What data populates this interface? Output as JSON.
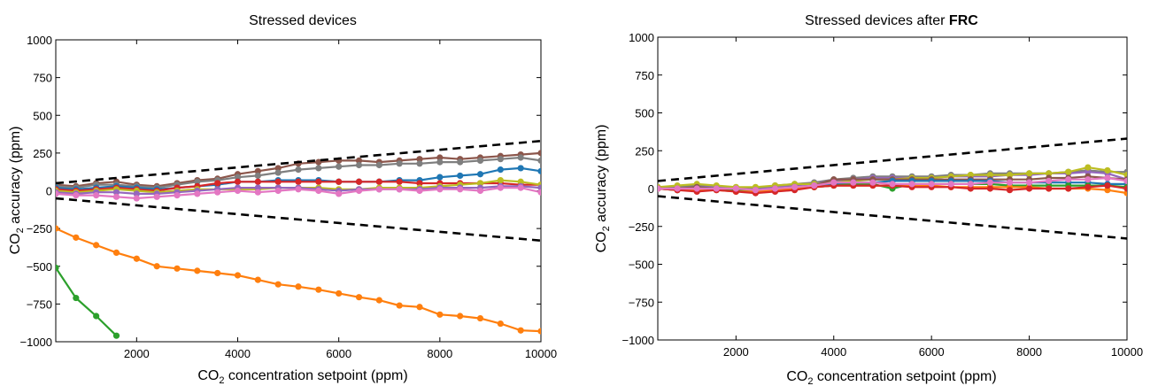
{
  "chart_data": [
    {
      "type": "line",
      "title": "Stressed devices",
      "title_bold": "",
      "xlabel": {
        "pre": "CO",
        "sub": "2",
        "post": " concentration setpoint (ppm)"
      },
      "ylabel": {
        "pre": "CO",
        "sub": "2",
        "post": " accuracy (ppm)"
      },
      "xlim": [
        400,
        10000
      ],
      "ylim": [
        -1000,
        1000
      ],
      "xticks": [
        2000,
        4000,
        6000,
        8000,
        10000
      ],
      "xtick_labels": [
        "2000",
        "4000",
        "6000",
        "8000",
        "10000"
      ],
      "yticks": [
        1000,
        750,
        500,
        250,
        0,
        -250,
        -500,
        -750,
        -1000
      ],
      "ytick_labels": [
        "1000",
        "750",
        "500",
        "250",
        "0",
        "−250",
        "−500",
        "−750",
        "−1000"
      ],
      "tolerance_lines": [
        {
          "x": [
            400,
            10000
          ],
          "y": [
            50,
            330
          ]
        },
        {
          "x": [
            400,
            10000
          ],
          "y": [
            -50,
            -330
          ]
        }
      ],
      "x": [
        400,
        800,
        1200,
        1600,
        2000,
        2400,
        2800,
        3200,
        3600,
        4000,
        4400,
        4800,
        5200,
        5600,
        6000,
        6400,
        6800,
        7200,
        7600,
        8000,
        8400,
        8800,
        9200,
        9600,
        10000
      ],
      "series": [
        {
          "color": "#ff7f0e",
          "values": [
            -250,
            -310,
            -360,
            -410,
            -450,
            -500,
            -515,
            -530,
            -545,
            -560,
            -590,
            -620,
            -635,
            -655,
            -680,
            -705,
            -725,
            -760,
            -770,
            -820,
            -830,
            -845,
            -880,
            -925,
            -930
          ]
        },
        {
          "color": "#2ca02c",
          "x": [
            400,
            800,
            1200,
            1600
          ],
          "values": [
            -510,
            -710,
            -830,
            -960
          ]
        },
        {
          "color": "#8c564b",
          "values": [
            40,
            30,
            50,
            60,
            40,
            30,
            50,
            70,
            80,
            110,
            130,
            150,
            180,
            190,
            200,
            200,
            190,
            200,
            210,
            220,
            210,
            220,
            230,
            240,
            250
          ]
        },
        {
          "color": "#7f7f7f",
          "values": [
            30,
            20,
            40,
            40,
            30,
            20,
            40,
            60,
            70,
            90,
            100,
            120,
            140,
            150,
            160,
            170,
            170,
            180,
            180,
            190,
            190,
            200,
            210,
            220,
            200
          ]
        },
        {
          "color": "#1f77b4",
          "values": [
            20,
            10,
            20,
            30,
            20,
            10,
            20,
            30,
            40,
            60,
            60,
            70,
            70,
            70,
            60,
            60,
            60,
            70,
            70,
            90,
            100,
            110,
            140,
            150,
            130
          ]
        },
        {
          "color": "#d62728",
          "values": [
            10,
            0,
            10,
            20,
            10,
            0,
            20,
            30,
            50,
            60,
            60,
            60,
            60,
            60,
            60,
            60,
            60,
            60,
            50,
            50,
            50,
            50,
            50,
            40,
            40
          ]
        },
        {
          "color": "#bcbd22",
          "values": [
            0,
            -10,
            0,
            10,
            0,
            -10,
            0,
            10,
            10,
            10,
            10,
            20,
            20,
            20,
            10,
            10,
            20,
            20,
            20,
            30,
            40,
            50,
            70,
            60,
            40
          ]
        },
        {
          "color": "#9467bd",
          "values": [
            -10,
            -20,
            -10,
            -10,
            -20,
            -20,
            -10,
            0,
            10,
            20,
            20,
            20,
            20,
            10,
            0,
            10,
            10,
            10,
            10,
            20,
            20,
            20,
            30,
            30,
            20
          ]
        },
        {
          "color": "#e377c2",
          "values": [
            -20,
            -30,
            -30,
            -40,
            -50,
            -40,
            -30,
            -20,
            -10,
            0,
            -10,
            0,
            10,
            0,
            -20,
            0,
            10,
            10,
            0,
            10,
            10,
            0,
            20,
            20,
            -10
          ]
        }
      ]
    },
    {
      "type": "line",
      "title": "Stressed devices after ",
      "title_bold": "FRC",
      "xlabel": {
        "pre": "CO",
        "sub": "2",
        "post": " concentration setpoint (ppm)"
      },
      "ylabel": {
        "pre": "CO",
        "sub": "2",
        "post": " accuracy (ppm)"
      },
      "xlim": [
        400,
        10000
      ],
      "ylim": [
        -1000,
        1000
      ],
      "xticks": [
        2000,
        4000,
        6000,
        8000,
        10000
      ],
      "xtick_labels": [
        "2000",
        "4000",
        "6000",
        "8000",
        "10000"
      ],
      "yticks": [
        1000,
        750,
        500,
        250,
        0,
        -250,
        -500,
        -750,
        -1000
      ],
      "ytick_labels": [
        "1000",
        "750",
        "500",
        "250",
        "0",
        "−250",
        "−500",
        "−750",
        "−1000"
      ],
      "tolerance_lines": [
        {
          "x": [
            400,
            10000
          ],
          "y": [
            50,
            330
          ]
        },
        {
          "x": [
            400,
            10000
          ],
          "y": [
            -50,
            -330
          ]
        }
      ],
      "x": [
        400,
        800,
        1200,
        1600,
        2000,
        2400,
        2800,
        3200,
        3600,
        4000,
        4400,
        4800,
        5200,
        5600,
        6000,
        6400,
        6800,
        7200,
        7600,
        8000,
        8400,
        8800,
        9200,
        9600,
        10000
      ],
      "series": [
        {
          "color": "#7f7f7f",
          "values": [
            0,
            10,
            20,
            10,
            0,
            0,
            20,
            30,
            40,
            60,
            70,
            80,
            80,
            80,
            80,
            90,
            90,
            100,
            100,
            100,
            100,
            110,
            120,
            110,
            110
          ]
        },
        {
          "color": "#9467bd",
          "values": [
            0,
            0,
            10,
            10,
            0,
            -10,
            10,
            20,
            30,
            50,
            60,
            70,
            70,
            70,
            70,
            80,
            80,
            80,
            90,
            90,
            100,
            100,
            110,
            100,
            60
          ]
        },
        {
          "color": "#bcbd22",
          "values": [
            10,
            20,
            30,
            20,
            10,
            10,
            20,
            30,
            30,
            40,
            50,
            60,
            60,
            70,
            70,
            80,
            90,
            90,
            90,
            100,
            100,
            110,
            140,
            120,
            90
          ]
        },
        {
          "color": "#8c564b",
          "values": [
            0,
            0,
            10,
            0,
            -10,
            -20,
            0,
            10,
            20,
            60,
            60,
            60,
            60,
            60,
            60,
            60,
            60,
            60,
            60,
            60,
            70,
            70,
            80,
            70,
            60
          ]
        },
        {
          "color": "#1f77b4",
          "values": [
            0,
            -10,
            0,
            0,
            -10,
            -10,
            0,
            10,
            20,
            30,
            40,
            40,
            50,
            50,
            50,
            50,
            50,
            50,
            40,
            40,
            40,
            40,
            40,
            30,
            30
          ]
        },
        {
          "color": "#2ca02c",
          "values": [
            0,
            -10,
            0,
            0,
            -10,
            -20,
            -10,
            0,
            10,
            20,
            30,
            30,
            0,
            30,
            30,
            30,
            30,
            30,
            20,
            20,
            20,
            20,
            20,
            20,
            10
          ]
        },
        {
          "color": "#ff7f0e",
          "values": [
            0,
            -10,
            -10,
            -10,
            -20,
            -20,
            -10,
            0,
            10,
            20,
            20,
            20,
            20,
            20,
            20,
            10,
            10,
            10,
            10,
            10,
            0,
            0,
            0,
            -10,
            -30
          ]
        },
        {
          "color": "#d62728",
          "values": [
            0,
            -10,
            -20,
            -10,
            -20,
            -30,
            -20,
            -10,
            10,
            20,
            20,
            20,
            20,
            10,
            10,
            10,
            0,
            0,
            -10,
            0,
            0,
            0,
            10,
            20,
            0
          ]
        },
        {
          "color": "#e377c2",
          "values": [
            0,
            0,
            0,
            0,
            0,
            -10,
            0,
            10,
            20,
            40,
            40,
            40,
            30,
            30,
            30,
            30,
            30,
            40,
            40,
            40,
            50,
            60,
            60,
            70,
            50
          ]
        }
      ]
    }
  ]
}
